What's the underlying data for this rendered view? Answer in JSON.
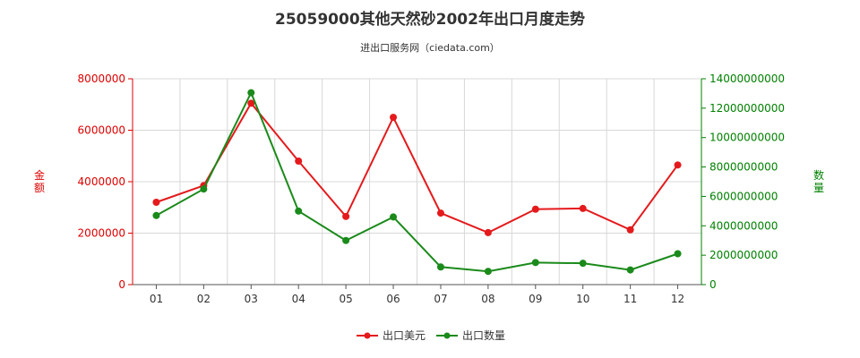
{
  "chart_data": {
    "type": "line",
    "title": "25059000其他天然砂2002年出口月度走势",
    "subtitle": "进出口服务网（ciedata.com）",
    "categories": [
      "01",
      "02",
      "03",
      "04",
      "05",
      "06",
      "07",
      "08",
      "09",
      "10",
      "11",
      "12"
    ],
    "y_left": {
      "label": "金额",
      "ylim": [
        0,
        8000000
      ],
      "ticks": [
        "0",
        "2000000",
        "4000000",
        "6000000",
        "8000000"
      ],
      "color": "#dd0000"
    },
    "y_right": {
      "label": "数量",
      "ylim": [
        0,
        14000000000
      ],
      "ticks": [
        "0",
        "2000000000",
        "4000000000",
        "6000000000",
        "8000000000",
        "10000000000",
        "12000000000",
        "14000000000"
      ],
      "color": "#008000"
    },
    "series": [
      {
        "name": "出口美元",
        "axis": "left",
        "color": "#e41a1c",
        "values": [
          3200000,
          3850000,
          7050000,
          4800000,
          2650000,
          6500000,
          2780000,
          2020000,
          2930000,
          2960000,
          2130000,
          4650000
        ]
      },
      {
        "name": "出口数量",
        "axis": "right",
        "color": "#1a8a1a",
        "values": [
          4700000000,
          6500000000,
          13050000000,
          5000000000,
          3000000000,
          4600000000,
          1200000000,
          900000000,
          1500000000,
          1450000000,
          1000000000,
          2100000000
        ]
      }
    ],
    "grid": true,
    "legend_position": "bottom"
  }
}
